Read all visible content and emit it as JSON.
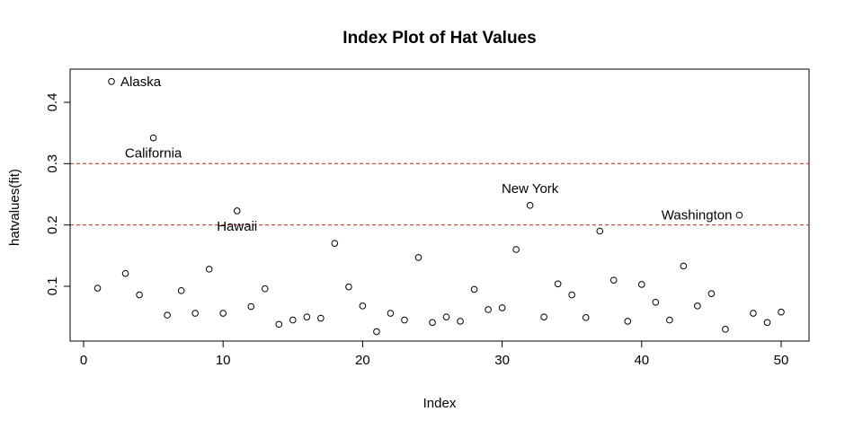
{
  "chart_data": {
    "type": "scatter",
    "title": "Index Plot of Hat Values",
    "xlabel": "Index",
    "ylabel": "hatvalues(fit)",
    "xlim": [
      0,
      52
    ],
    "ylim": [
      0.02,
      0.45
    ],
    "x_ticks": [
      0,
      10,
      20,
      30,
      40,
      50
    ],
    "y_ticks": [
      0.1,
      0.2,
      0.3,
      0.4
    ],
    "reference_lines": [
      {
        "y": 0.2,
        "color": "#c0392b",
        "style": "dashed"
      },
      {
        "y": 0.3,
        "color": "#c0392b",
        "style": "dashed"
      }
    ],
    "x": [
      1,
      2,
      3,
      4,
      5,
      6,
      7,
      8,
      9,
      10,
      11,
      12,
      13,
      14,
      15,
      16,
      17,
      18,
      19,
      20,
      21,
      22,
      23,
      24,
      25,
      26,
      27,
      28,
      29,
      30,
      31,
      32,
      33,
      34,
      35,
      36,
      37,
      38,
      39,
      40,
      41,
      42,
      43,
      44,
      45,
      46,
      47,
      48,
      49,
      50
    ],
    "y": [
      0.097,
      0.434,
      0.121,
      0.086,
      0.342,
      0.053,
      0.093,
      0.056,
      0.128,
      0.056,
      0.223,
      0.067,
      0.096,
      0.038,
      0.045,
      0.05,
      0.048,
      0.17,
      0.099,
      0.068,
      0.026,
      0.056,
      0.045,
      0.147,
      0.041,
      0.05,
      0.043,
      0.095,
      0.062,
      0.065,
      0.16,
      0.232,
      0.05,
      0.104,
      0.086,
      0.049,
      0.19,
      0.11,
      0.043,
      0.103,
      0.074,
      0.045,
      0.133,
      0.068,
      0.088,
      0.03,
      0.216,
      0.056,
      0.041,
      0.058
    ],
    "annotations": [
      {
        "label": "Alaska",
        "x": 2,
        "y": 0.434,
        "pos": "right"
      },
      {
        "label": "California",
        "x": 5,
        "y": 0.342,
        "pos": "below"
      },
      {
        "label": "Hawaii",
        "x": 11,
        "y": 0.223,
        "pos": "below"
      },
      {
        "label": "New York",
        "x": 32,
        "y": 0.232,
        "pos": "above"
      },
      {
        "label": "Washington",
        "x": 47,
        "y": 0.216,
        "pos": "left"
      }
    ]
  }
}
